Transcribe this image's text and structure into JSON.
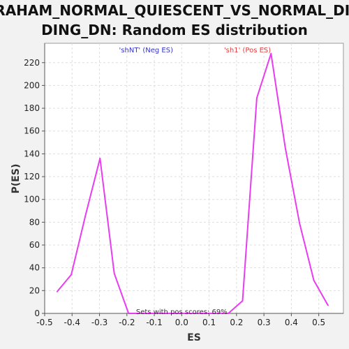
{
  "chart_data": {
    "type": "line",
    "title_line1": "GRAHAM_NORMAL_QUIESCENT_VS_NORMAL_DIVI",
    "title_line2": "DING_DN: Random ES distribution",
    "xlabel": "ES",
    "ylabel": "P(ES)",
    "xlim": [
      -0.5,
      0.59
    ],
    "ylim": [
      0,
      237
    ],
    "xticks": [
      -0.5,
      -0.4,
      -0.3,
      -0.2,
      -0.1,
      0.0,
      0.1,
      0.2,
      0.3,
      0.4,
      0.5
    ],
    "xtick_labels": [
      "-0.5",
      "-0.4",
      "-0.3",
      "-0.2",
      "-0.1",
      "0.0",
      "0.1",
      "0.2",
      "0.3",
      "0.4",
      "0.5"
    ],
    "yticks": [
      0,
      20,
      40,
      60,
      80,
      100,
      120,
      140,
      160,
      180,
      200,
      220
    ],
    "ytick_labels": [
      "0",
      "20",
      "40",
      "60",
      "80",
      "100",
      "120",
      "140",
      "160",
      "180",
      "200",
      "220"
    ],
    "grid": true,
    "line_color": "#e83cf0",
    "series": [
      {
        "x": [
          -0.455,
          -0.403,
          -0.35,
          -0.298,
          -0.246,
          -0.194,
          -0.142,
          -0.09,
          -0.038,
          0.014,
          0.066,
          0.118,
          0.17,
          0.222,
          0.274,
          0.326,
          0.378,
          0.43,
          0.482,
          0.534
        ],
        "y": [
          19,
          34,
          87,
          136,
          35,
          0,
          0,
          0,
          0,
          0,
          0,
          0,
          0,
          11,
          189,
          228,
          145,
          79,
          29,
          7
        ]
      }
    ],
    "annotations": [
      {
        "text": "'shNT' (Neg ES)",
        "x": -0.13,
        "y": 231,
        "color": "#3333cc"
      },
      {
        "text": "'sh1' (Pos ES)",
        "x": 0.24,
        "y": 231,
        "color": "#e03c3c"
      },
      {
        "text": "Sets with pos scores: 69%",
        "x": 0.0,
        "y": 1.2,
        "color": "#333333"
      }
    ]
  }
}
